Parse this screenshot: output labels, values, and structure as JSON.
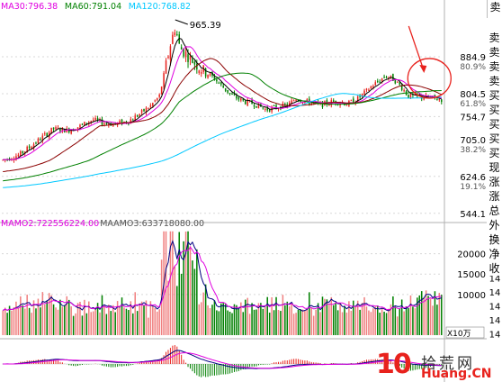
{
  "chart_data": [
    {
      "type": "candlestick",
      "panel": "price",
      "legend": [
        {
          "name": "MA30",
          "label": "MA30:796.38",
          "value": 796.38,
          "color": "#e000e0"
        },
        {
          "name": "MA60",
          "label": "MA60:791.04",
          "value": 791.04,
          "color": "#008000"
        },
        {
          "name": "MA120",
          "label": "MA120:768.82",
          "value": 768.82,
          "color": "#00c8ff"
        }
      ],
      "y_ticks": [
        {
          "value": 884.9,
          "label": "884.9",
          "pct": "80.9%"
        },
        {
          "value": 804.5,
          "label": "804.5",
          "pct": "61.8%"
        },
        {
          "value": 754.7,
          "label": "754.7",
          "pct": ""
        },
        {
          "value": 705.0,
          "label": "705.0",
          "pct": "38.2%"
        },
        {
          "value": 624.6,
          "label": "624.6",
          "pct": "19.1%"
        },
        {
          "value": 544.1,
          "label": "544.1",
          "pct": ""
        }
      ],
      "ylim": [
        530,
        985
      ],
      "annotations": [
        {
          "text": "965.39",
          "value": 965.39
        }
      ],
      "bars": 200,
      "up_color": "#e8221d",
      "down_color": "#008000"
    },
    {
      "type": "bar",
      "panel": "volume",
      "legend": [
        {
          "label": "MAMO2:722556224.00",
          "color": "#e000e0"
        },
        {
          "label": "MAAMO3:633718080.00",
          "color": "#555555"
        }
      ],
      "y_ticks": [
        {
          "value": 20000,
          "label": "20000"
        },
        {
          "value": 15000,
          "label": "15000"
        },
        {
          "value": 10000,
          "label": "10000"
        }
      ],
      "unit_label": "X10万",
      "ylim": [
        0,
        27000
      ]
    },
    {
      "type": "bar",
      "panel": "macd",
      "colors": {
        "pos": "#e8221d",
        "neg": "#008000",
        "dif": "#000080",
        "dea": "#e000e0"
      }
    }
  ],
  "side_top": [
    "卖"
  ],
  "side_labels": [
    "卖",
    "卖",
    "卖",
    "卖",
    "买",
    "买",
    "买",
    "买",
    "买",
    "现",
    "涨",
    "涨",
    "总",
    "外",
    "换",
    "净",
    "收"
  ],
  "side_right_ticks": [
    "14",
    "14",
    "14",
    "14",
    "14",
    "14",
    "14",
    "14"
  ],
  "watermark": {
    "icon": "10",
    "cn": "拾荒网",
    "en": "Huang.CN"
  }
}
